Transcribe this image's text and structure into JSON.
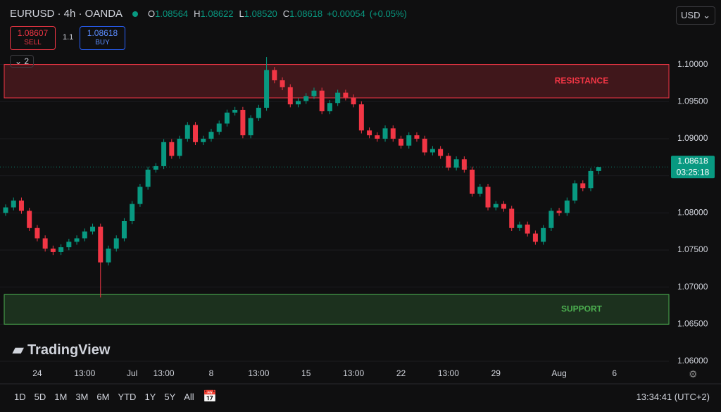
{
  "chart_data": {
    "type": "candlestick",
    "symbol": "EURUSD · 4h · OANDA",
    "categories": [
      null,
      null,
      null,
      null,
      "24",
      null,
      null,
      null,
      null,
      null,
      "13:00",
      null,
      null,
      null,
      null,
      null,
      "Jul",
      null,
      null,
      null,
      "13:00",
      null,
      null,
      null,
      null,
      null,
      "8",
      null,
      null,
      null,
      null,
      null,
      "13:00",
      null,
      null,
      null,
      null,
      null,
      "15",
      null,
      null,
      null,
      null,
      null,
      "13:00",
      null,
      null,
      null,
      null,
      null,
      "22",
      null,
      null,
      null,
      null,
      null,
      "13:00",
      null,
      null,
      null,
      null,
      null,
      "29",
      null,
      null,
      null,
      null,
      null,
      null,
      null,
      "Aug",
      null,
      null,
      null,
      null,
      null,
      null,
      "6"
    ],
    "open": [
      1.08,
      1.08074,
      1.08167,
      1.08028,
      1.07796,
      1.07657,
      1.07519,
      1.07472,
      1.07537,
      1.07611,
      1.07657,
      1.0775,
      1.07815,
      1.07333,
      1.07519,
      1.07657,
      1.07889,
      1.0812,
      1.08352,
      1.08583,
      1.0863,
      1.08954,
      1.08769,
      1.09,
      1.09185,
      1.08954,
      1.09,
      1.09093,
      1.09204,
      1.09352,
      1.09389,
      1.09046,
      1.09278,
      1.09417,
      1.09926,
      1.09787,
      1.09694,
      1.09463,
      1.09509,
      1.09574,
      1.09648,
      1.0937,
      1.09481,
      1.0962,
      1.09556,
      1.09463,
      1.09111,
      1.09046,
      1.09,
      1.09139,
      1.09,
      1.08907,
      1.09046,
      1.09,
      1.08815,
      1.08861,
      1.08769,
      1.08611,
      1.08722,
      1.08583,
      1.08259,
      1.08352,
      1.08074,
      1.0812,
      1.08056,
      1.07796,
      1.07843,
      1.07722,
      1.07611,
      1.07796,
      1.08028,
      1.08,
      1.08167,
      1.08398,
      1.08333,
      1.08564,
      null,
      null
    ],
    "high": [
      1.08114,
      1.08207,
      1.08207,
      1.08068,
      1.07836,
      1.07697,
      1.07559,
      1.07577,
      1.07651,
      1.07697,
      1.0779,
      1.07855,
      1.07855,
      1.07559,
      1.07697,
      1.07929,
      1.0816,
      1.08392,
      1.08623,
      1.0867,
      1.08994,
      1.08994,
      1.0904,
      1.09225,
      1.09225,
      1.0904,
      1.09133,
      1.09244,
      1.09392,
      1.09429,
      1.09429,
      1.09318,
      1.09457,
      1.101,
      1.09966,
      1.09827,
      1.09734,
      1.09549,
      1.09614,
      1.09688,
      1.09688,
      1.09521,
      1.0966,
      1.0966,
      1.09596,
      1.09503,
      1.09151,
      1.09086,
      1.09179,
      1.09179,
      1.0904,
      1.09086,
      1.09086,
      1.0904,
      1.08901,
      1.08901,
      1.08809,
      1.08762,
      1.08762,
      1.08623,
      1.08392,
      1.08392,
      1.0816,
      1.0816,
      1.08096,
      1.07883,
      1.07883,
      1.07762,
      1.07836,
      1.08068,
      1.08068,
      1.08207,
      1.08438,
      1.08438,
      1.08604,
      1.08622,
      null,
      null
    ],
    "low": [
      1.0796,
      1.08034,
      1.07988,
      1.07756,
      1.07617,
      1.07479,
      1.07432,
      1.07432,
      1.07497,
      1.07571,
      1.07617,
      1.0771,
      1.0686,
      1.07293,
      1.07479,
      1.07617,
      1.07849,
      1.0808,
      1.08312,
      1.08543,
      1.0859,
      1.08729,
      1.08729,
      1.0896,
      1.08914,
      1.08914,
      1.0896,
      1.09053,
      1.09164,
      1.09312,
      1.09006,
      1.09006,
      1.09238,
      1.09377,
      1.09747,
      1.09654,
      1.09423,
      1.09423,
      1.09469,
      1.09534,
      1.0933,
      1.0933,
      1.09441,
      1.09516,
      1.09423,
      1.09071,
      1.09006,
      1.0896,
      1.0896,
      1.0896,
      1.08867,
      1.08867,
      1.0896,
      1.08775,
      1.08775,
      1.08729,
      1.08571,
      1.08571,
      1.08543,
      1.08219,
      1.08219,
      1.08034,
      1.08034,
      1.08016,
      1.07756,
      1.07756,
      1.07682,
      1.07571,
      1.07571,
      1.07756,
      1.0796,
      1.0796,
      1.08127,
      1.08293,
      1.08293,
      1.0852,
      null,
      null
    ],
    "close": [
      1.08074,
      1.08167,
      1.08028,
      1.07796,
      1.07657,
      1.07519,
      1.07472,
      1.07537,
      1.07611,
      1.07657,
      1.0775,
      1.07815,
      1.07333,
      1.07519,
      1.07657,
      1.07889,
      1.0812,
      1.08352,
      1.08583,
      1.0863,
      1.08954,
      1.08769,
      1.09,
      1.09185,
      1.08954,
      1.09,
      1.09093,
      1.09204,
      1.09352,
      1.09389,
      1.09046,
      1.09278,
      1.09417,
      1.09926,
      1.09787,
      1.09694,
      1.09463,
      1.09509,
      1.09574,
      1.09648,
      1.0937,
      1.09481,
      1.0962,
      1.09556,
      1.09463,
      1.09111,
      1.09046,
      1.09,
      1.09139,
      1.09,
      1.08907,
      1.09046,
      1.09,
      1.08815,
      1.08861,
      1.08769,
      1.08611,
      1.08722,
      1.08583,
      1.08259,
      1.08352,
      1.08074,
      1.0812,
      1.08056,
      1.07796,
      1.07843,
      1.07722,
      1.07611,
      1.07796,
      1.08028,
      1.08,
      1.08167,
      1.08398,
      1.08333,
      1.08564,
      1.08618,
      null,
      null
    ],
    "up_color": "#089981",
    "down_color": "#f23645",
    "ylim": [
      1.06,
      1.1011
    ],
    "yticks": [
      {
        "value": 1.06,
        "label": "1.06000"
      },
      {
        "value": 1.065,
        "label": "1.06500"
      },
      {
        "value": 1.07,
        "label": "1.07000"
      },
      {
        "value": 1.075,
        "label": "1.07500"
      },
      {
        "value": 1.08,
        "label": "1.08000"
      },
      {
        "value": 1.085,
        "label": "1.08500"
      },
      {
        "value": 1.09,
        "label": "1.09000"
      },
      {
        "value": 1.095,
        "label": "1.09500"
      },
      {
        "value": 1.1,
        "label": "1.10000"
      }
    ],
    "grid": true,
    "zones": [
      {
        "label": "RESISTANCE",
        "from": 1.0955,
        "to": 1.1,
        "color": "#f23645"
      },
      {
        "label": "SUPPORT",
        "from": 1.065,
        "to": 1.069,
        "color": "#4caf50"
      }
    ],
    "last_price_time": "03:25:18"
  },
  "ui": {
    "ohlc_letters": [
      "O",
      "H",
      "L",
      "C"
    ],
    "ohlc_values": [
      "1.08564",
      "1.08622",
      "1.08520",
      "1.08618"
    ],
    "change": "+0.00054",
    "change_pct": "(+0.05%)",
    "sell_price": "1.08607",
    "sell": "SELL",
    "spread": "1.1",
    "buy_price": "1.08618",
    "buy": "BUY",
    "indicators": "2",
    "currency": "USD",
    "logo": "TradingView",
    "ranges": [
      "1D",
      "5D",
      "1M",
      "3M",
      "6M",
      "YTD",
      "1Y",
      "5Y",
      "All"
    ],
    "clock": "13:34:41 (UTC+2)"
  }
}
